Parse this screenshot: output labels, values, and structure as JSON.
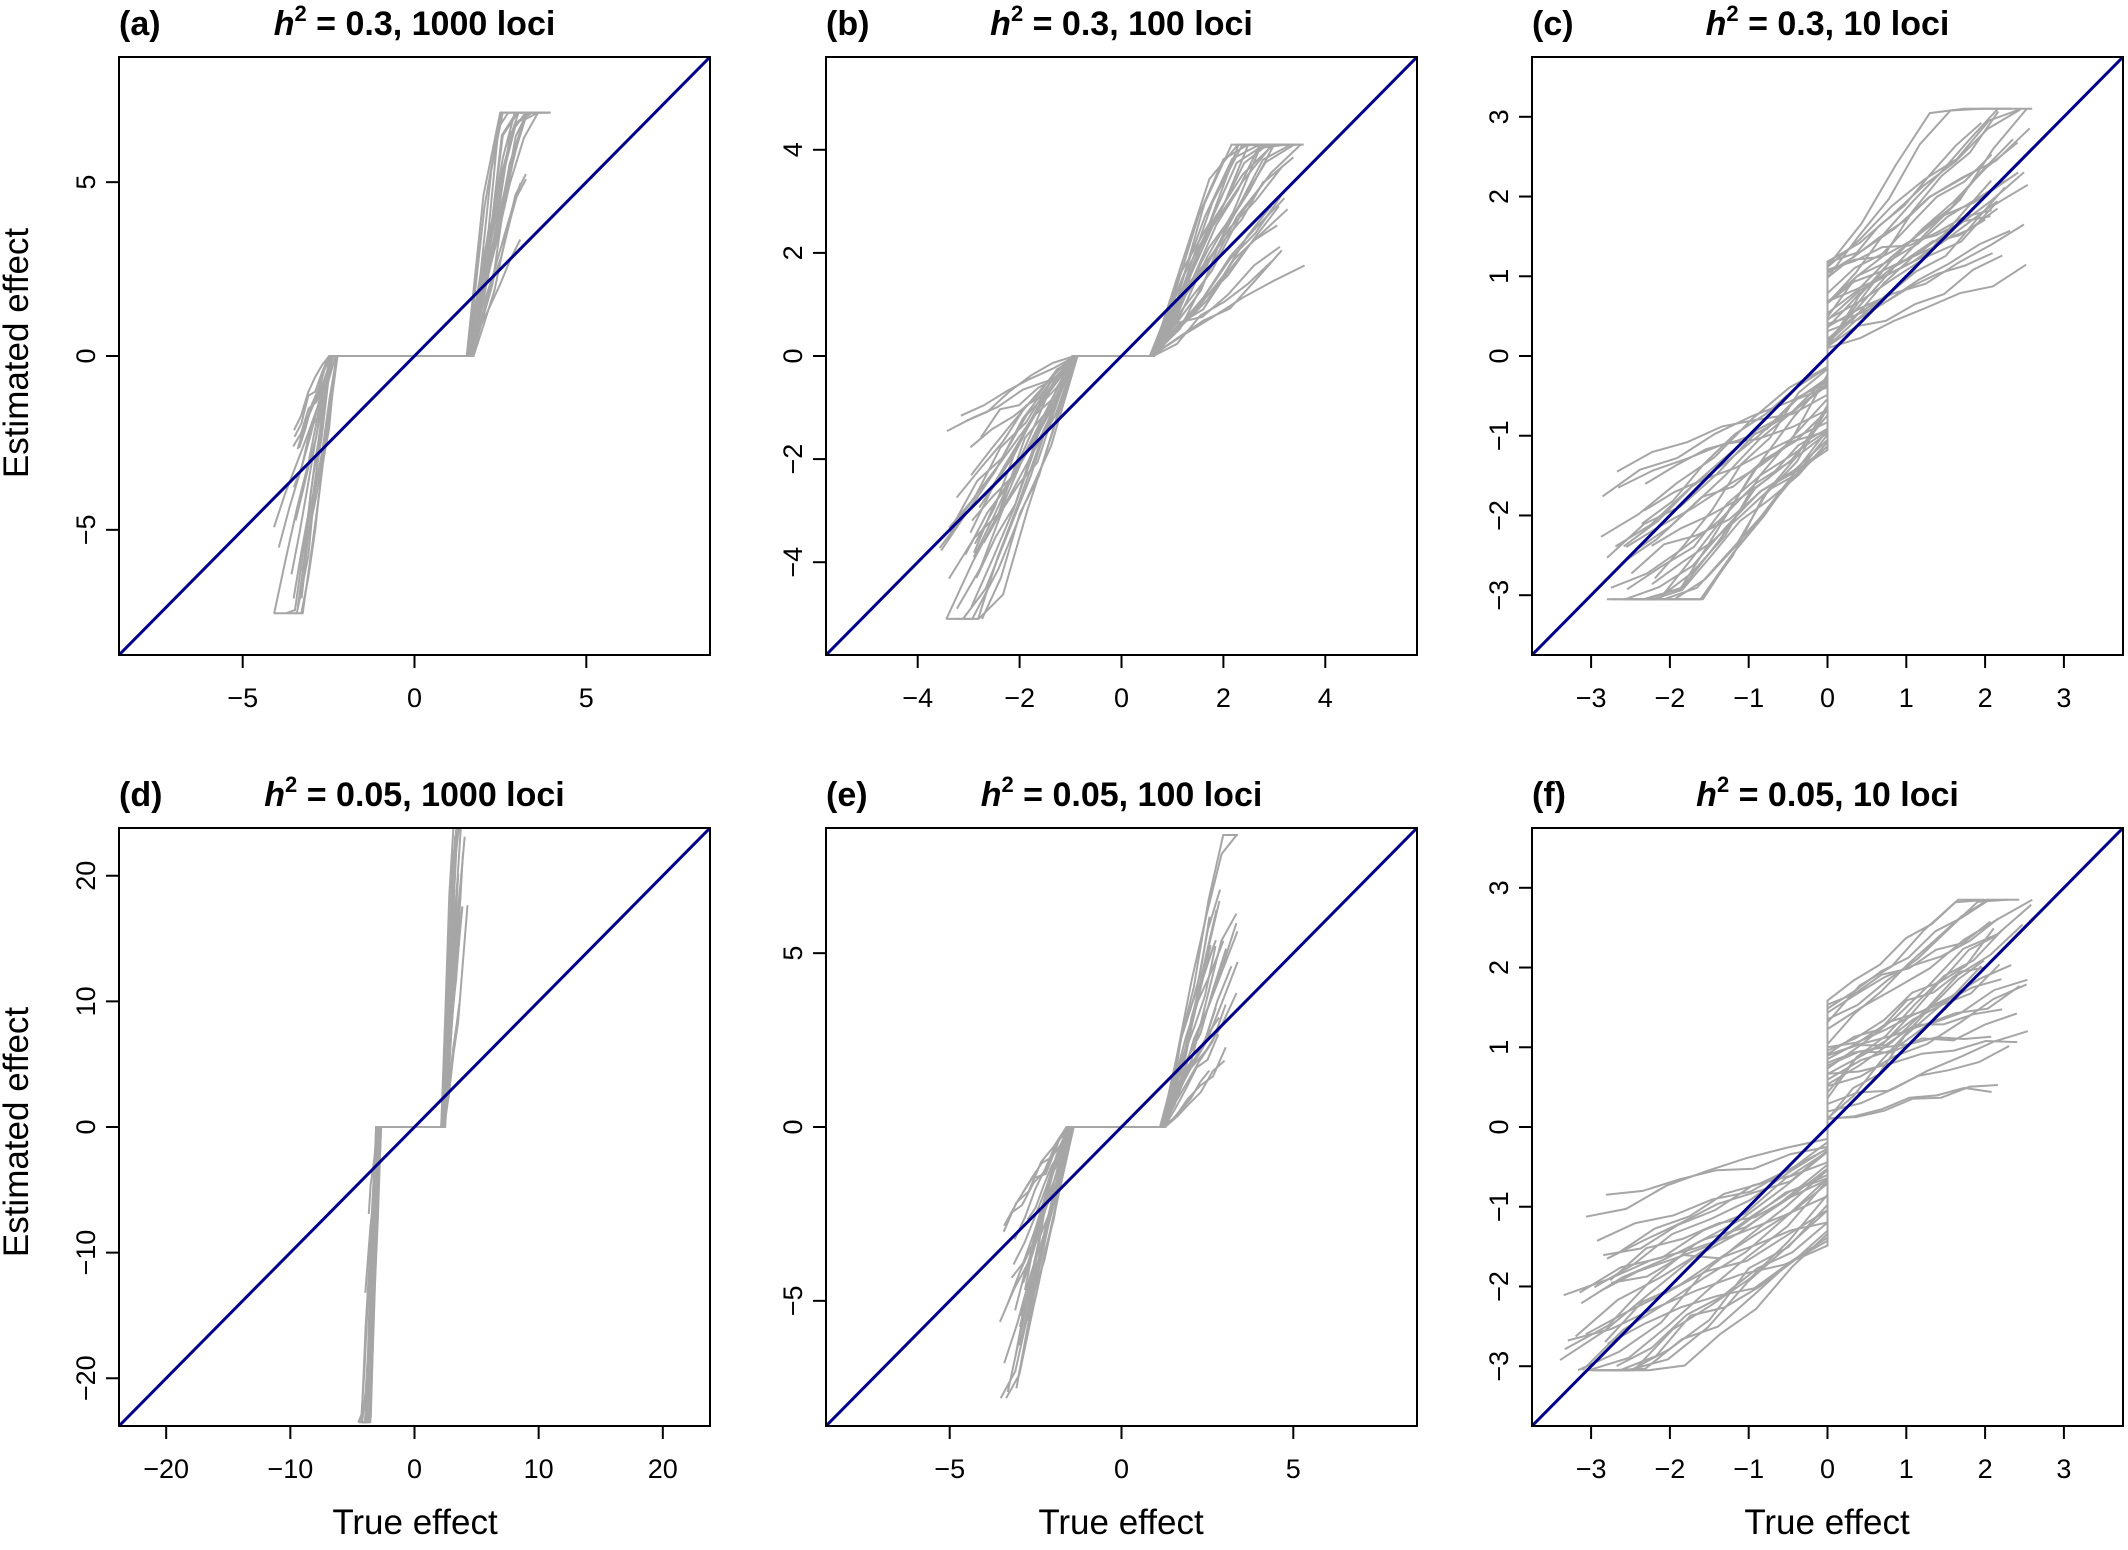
{
  "figure": {
    "x_axis_title": "True effect",
    "y_axis_title": "Estimated effect"
  },
  "chart_data": [
    {
      "type": "line",
      "panel_letter": "(a)",
      "title_prefix": "h",
      "title_sup": "2",
      "title_rest": " = 0.3, 1000 loci",
      "xlim": [
        -8.6,
        8.6
      ],
      "ylim": [
        -8.6,
        8.6
      ],
      "xticks": [
        -5,
        0,
        5
      ],
      "yticks": [
        -5,
        0,
        5
      ],
      "x_tick_labels": [
        "−5",
        "0",
        "5"
      ],
      "y_tick_labels": [
        "−5",
        "0",
        "5"
      ],
      "reference_line": "y = x",
      "reference_color": "#00008b",
      "trajectory_color": "#a6a6a6",
      "trajectory_count": 40,
      "trajectory_model": "threshold",
      "threshold": [
        -2.35,
        1.6
      ],
      "neg_slope_range": [
        2.0,
        9.0
      ],
      "pos_slope_range": [
        2.0,
        9.0
      ],
      "x_extent": [
        -4.1,
        4.0
      ],
      "y_clip": [
        -7.4,
        7.0
      ],
      "noise": 0.35
    },
    {
      "type": "line",
      "panel_letter": "(b)",
      "title_prefix": "h",
      "title_sup": "2",
      "title_rest": " = 0.3, 100 loci",
      "xlim": [
        -5.8,
        5.8
      ],
      "ylim": [
        -5.8,
        5.8
      ],
      "xticks": [
        -4,
        -2,
        0,
        2,
        4
      ],
      "yticks": [
        -4,
        -2,
        0,
        2,
        4
      ],
      "x_tick_labels": [
        "−4",
        "−2",
        "0",
        "2",
        "4"
      ],
      "y_tick_labels": [
        "−4",
        "−2",
        "0",
        "2",
        "4"
      ],
      "reference_line": "y = x",
      "reference_color": "#00008b",
      "trajectory_color": "#a6a6a6",
      "trajectory_count": 60,
      "trajectory_model": "threshold",
      "threshold": [
        -0.9,
        0.6
      ],
      "neg_slope_range": [
        0.5,
        2.8
      ],
      "pos_slope_range": [
        0.5,
        2.8
      ],
      "x_extent": [
        -3.6,
        3.6
      ],
      "y_clip": [
        -5.1,
        4.1
      ],
      "noise": 0.3
    },
    {
      "type": "line",
      "panel_letter": "(c)",
      "title_prefix": "h",
      "title_sup": "2",
      "title_rest": " = 0.3, 10 loci",
      "xlim": [
        -3.75,
        3.75
      ],
      "ylim": [
        -3.75,
        3.75
      ],
      "xticks": [
        -3,
        -2,
        -1,
        0,
        1,
        2,
        3
      ],
      "yticks": [
        -3,
        -2,
        -1,
        0,
        1,
        2,
        3
      ],
      "x_tick_labels": [
        "−3",
        "−2",
        "−1",
        "0",
        "1",
        "2",
        "3"
      ],
      "y_tick_labels": [
        "−3",
        "−2",
        "−1",
        "0",
        "1",
        "2",
        "3"
      ],
      "reference_line": "y = x",
      "reference_color": "#00008b",
      "trajectory_color": "#a6a6a6",
      "trajectory_count": 60,
      "trajectory_model": "jump",
      "jump_range": [
        0.1,
        1.2
      ],
      "neg_slope_range": [
        0.35,
        1.3
      ],
      "pos_slope_range": [
        0.35,
        1.3
      ],
      "x_extent": [
        -2.9,
        2.6
      ],
      "y_clip": [
        -3.05,
        3.1
      ],
      "noise": 0.12
    },
    {
      "type": "line",
      "panel_letter": "(d)",
      "title_prefix": "h",
      "title_sup": "2",
      "title_rest": " = 0.05, 1000 loci",
      "xlim": [
        -23.8,
        23.8
      ],
      "ylim": [
        -23.8,
        23.8
      ],
      "xticks": [
        -20,
        -10,
        0,
        10,
        20
      ],
      "yticks": [
        -20,
        -10,
        0,
        10,
        20
      ],
      "x_tick_labels": [
        "−20",
        "−10",
        "0",
        "10",
        "20"
      ],
      "y_tick_labels": [
        "−20",
        "−10",
        "0",
        "10",
        "20"
      ],
      "reference_line": "y = x",
      "reference_color": "#00008b",
      "trajectory_color": "#a6a6a6",
      "trajectory_count": 40,
      "trajectory_model": "threshold",
      "threshold": [
        -2.9,
        2.3
      ],
      "neg_slope_range": [
        8.0,
        30.0
      ],
      "pos_slope_range": [
        8.0,
        30.0
      ],
      "x_extent": [
        -4.6,
        4.4
      ],
      "y_clip": [
        -23.5,
        23.8
      ],
      "noise": 0.8
    },
    {
      "type": "line",
      "panel_letter": "(e)",
      "title_prefix": "h",
      "title_sup": "2",
      "title_rest": " = 0.05, 100 loci",
      "xlim": [
        -8.6,
        8.6
      ],
      "ylim": [
        -8.6,
        8.6
      ],
      "xticks": [
        -5,
        0,
        5
      ],
      "yticks": [
        -5,
        0,
        5
      ],
      "x_tick_labels": [
        "−5",
        "0",
        "5"
      ],
      "y_tick_labels": [
        "−5",
        "0",
        "5"
      ],
      "reference_line": "y = x",
      "reference_color": "#00008b",
      "trajectory_color": "#a6a6a6",
      "trajectory_count": 50,
      "trajectory_model": "threshold",
      "threshold": [
        -1.5,
        1.2
      ],
      "neg_slope_range": [
        1.2,
        5.0
      ],
      "pos_slope_range": [
        1.2,
        5.0
      ],
      "x_extent": [
        -3.6,
        3.4
      ],
      "y_clip": [
        -7.8,
        8.4
      ],
      "noise": 0.4
    },
    {
      "type": "line",
      "panel_letter": "(f)",
      "title_prefix": "h",
      "title_sup": "2",
      "title_rest": " = 0.05, 10 loci",
      "xlim": [
        -3.75,
        3.75
      ],
      "ylim": [
        -3.75,
        3.75
      ],
      "xticks": [
        -3,
        -2,
        -1,
        0,
        1,
        2,
        3
      ],
      "yticks": [
        -3,
        -2,
        -1,
        0,
        1,
        2,
        3
      ],
      "x_tick_labels": [
        "−3",
        "−2",
        "−1",
        "0",
        "1",
        "2",
        "3"
      ],
      "y_tick_labels": [
        "−3",
        "−2",
        "−1",
        "0",
        "1",
        "2",
        "3"
      ],
      "reference_line": "y = x",
      "reference_color": "#00008b",
      "trajectory_color": "#a6a6a6",
      "trajectory_count": 60,
      "trajectory_model": "jump",
      "jump_range": [
        0.05,
        1.6
      ],
      "neg_slope_range": [
        0.15,
        1.0
      ],
      "pos_slope_range": [
        0.15,
        1.0
      ],
      "x_extent": [
        -3.4,
        2.6
      ],
      "y_clip": [
        -3.05,
        2.85
      ],
      "noise": 0.15
    }
  ]
}
